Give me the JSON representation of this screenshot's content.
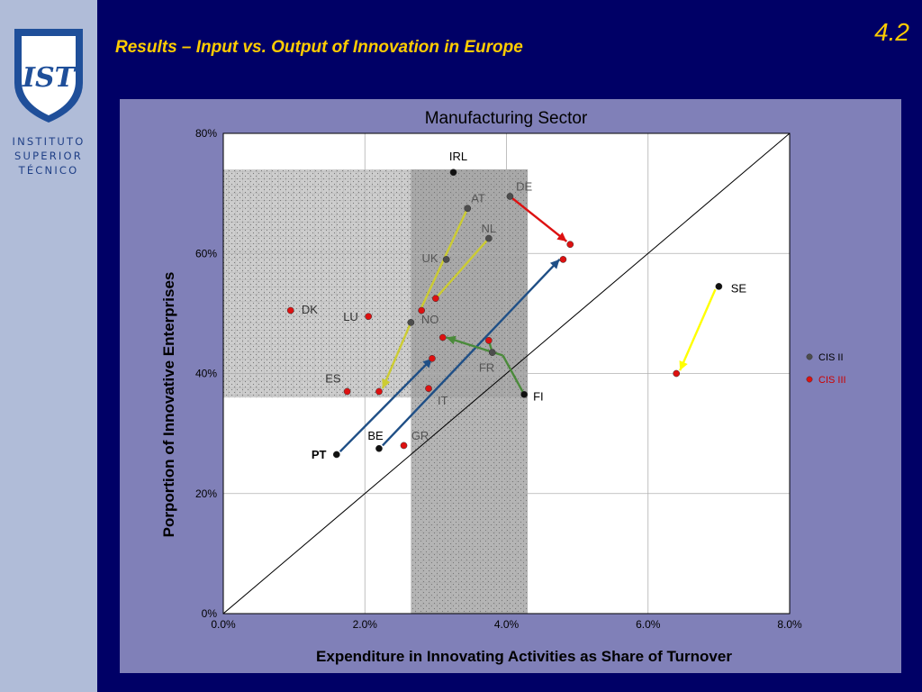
{
  "header": {
    "slide_number": "4.2",
    "title": "Results – Input vs. Output of Innovation in Europe"
  },
  "sidebar": {
    "logo_monogram": "IST",
    "institution_lines": [
      "INSTITUTO",
      "SUPERIOR",
      "TÉCNICO"
    ]
  },
  "colors": {
    "background": "#000066",
    "sidebar": "#b0bcd8",
    "panel": "#8080b8",
    "title": "#ffcc00",
    "cis2": "#4d4d4d",
    "cis3": "#dd1111",
    "arrow_de": "#dd1111",
    "arrow_pt_be": "#1f4f86",
    "arrow_se": "#ffff00",
    "arrow_lu_at_nl": "#cccc33",
    "arrow_fi": "#4a8a3a"
  },
  "chart_data": {
    "type": "scatter",
    "title": "Manufacturing Sector",
    "xlabel": "Expenditure in Innovating Activities as Share of Turnover",
    "ylabel": "Porportion of Innovative Enterprises",
    "xlim": [
      0,
      8
    ],
    "ylim": [
      0,
      80
    ],
    "x_unit": "%",
    "y_unit": "%",
    "x_ticks": [
      "0.0%",
      "2.0%",
      "4.0%",
      "6.0%",
      "8.0%"
    ],
    "y_ticks": [
      "0%",
      "20%",
      "40%",
      "60%",
      "80%"
    ],
    "grid": true,
    "diagonal_reference_line": true,
    "legend": {
      "placement": "right",
      "entries": [
        "CIS II",
        "CIS III"
      ]
    },
    "shaded_regions": [
      {
        "x": [
          0,
          4.3
        ],
        "y": [
          36,
          74
        ]
      },
      {
        "x": [
          2.65,
          4.3
        ],
        "y": [
          0,
          74
        ]
      }
    ],
    "series": [
      {
        "name": "CIS II",
        "points": [
          {
            "label": "IRL",
            "x": 3.25,
            "y": 73.5
          },
          {
            "label": "DE",
            "x": 4.05,
            "y": 69.5
          },
          {
            "label": "AT",
            "x": 3.45,
            "y": 67.5
          },
          {
            "label": "NL",
            "x": 3.75,
            "y": 62.5
          },
          {
            "label": "UK",
            "x": 3.15,
            "y": 59
          },
          {
            "label": "NO",
            "x": 2.65,
            "y": 48.5
          },
          {
            "label": "FR",
            "x": 3.8,
            "y": 43.5
          },
          {
            "label": "FI",
            "x": 4.25,
            "y": 36.5
          },
          {
            "label": "SE",
            "x": 7.0,
            "y": 54.5
          },
          {
            "label": "BE",
            "x": 2.2,
            "y": 27.5
          },
          {
            "label": "PT",
            "x": 1.6,
            "y": 26.5
          }
        ]
      },
      {
        "name": "CIS III",
        "points": [
          {
            "label": "DE",
            "x": 4.9,
            "y": 61.5
          },
          {
            "label": "BE",
            "x": 4.8,
            "y": 59
          },
          {
            "label": "PT",
            "x": 2.95,
            "y": 42.5
          },
          {
            "label": "SE",
            "x": 6.4,
            "y": 40
          },
          {
            "label": "DK",
            "x": 0.95,
            "y": 50.5
          },
          {
            "label": "LU",
            "x": 2.05,
            "y": 49.5
          },
          {
            "label": "ES",
            "x": 1.75,
            "y": 37
          },
          {
            "label": "GR",
            "x": 2.55,
            "y": 28
          },
          {
            "label": "IT",
            "x": 2.9,
            "y": 37.5
          },
          {
            "label": "AT",
            "x": 2.2,
            "y": 37
          },
          {
            "label": "NL",
            "x": 3.0,
            "y": 52.5
          },
          {
            "label": "UK",
            "x": 2.8,
            "y": 50.5
          },
          {
            "label": "FR",
            "x": 3.1,
            "y": 46
          },
          {
            "label": "FI",
            "x": 3.75,
            "y": 45.5
          }
        ]
      }
    ],
    "point_labels": [
      {
        "text": "IRL",
        "x": 3.32,
        "y": 75.5,
        "color": "#000000",
        "bold": false
      },
      {
        "text": "DE",
        "x": 4.25,
        "y": 70.5,
        "color": "#555555",
        "bold": false
      },
      {
        "text": "AT",
        "x": 3.6,
        "y": 68.5,
        "color": "#555555",
        "bold": false
      },
      {
        "text": "NL",
        "x": 3.75,
        "y": 63.5,
        "color": "#555555",
        "bold": false
      },
      {
        "text": "UK",
        "x": 2.92,
        "y": 58.5,
        "color": "#555555",
        "bold": false
      },
      {
        "text": "NO",
        "x": 2.92,
        "y": 48.3,
        "color": "#555555",
        "bold": false
      },
      {
        "text": "FR",
        "x": 3.72,
        "y": 40.3,
        "color": "#555555",
        "bold": false
      },
      {
        "text": "IT",
        "x": 3.1,
        "y": 34.8,
        "color": "#555555",
        "bold": false
      },
      {
        "text": "FI",
        "x": 4.45,
        "y": 35.5,
        "color": "#000000",
        "bold": false
      },
      {
        "text": "GR",
        "x": 2.78,
        "y": 29,
        "color": "#555555",
        "bold": false
      },
      {
        "text": "BE",
        "x": 2.15,
        "y": 29,
        "color": "#000000",
        "bold": false
      },
      {
        "text": "PT",
        "x": 1.35,
        "y": 25.8,
        "color": "#000000",
        "bold": true
      },
      {
        "text": "DK",
        "x": 1.22,
        "y": 50,
        "color": "#333333",
        "bold": false
      },
      {
        "text": "LU",
        "x": 1.8,
        "y": 48.8,
        "color": "#333333",
        "bold": false
      },
      {
        "text": "ES",
        "x": 1.55,
        "y": 38.5,
        "color": "#333333",
        "bold": false
      },
      {
        "text": "SE",
        "x": 7.28,
        "y": 53.5,
        "color": "#000000",
        "bold": false
      }
    ],
    "transitions": [
      {
        "from": [
          4.05,
          69.5
        ],
        "to": [
          4.85,
          62
        ],
        "color": "#dd1111",
        "arrowhead": true
      },
      {
        "from": [
          1.65,
          27
        ],
        "to": [
          2.95,
          42.5
        ],
        "color": "#1f4f86",
        "arrowhead": true
      },
      {
        "from": [
          2.25,
          28
        ],
        "to": [
          4.75,
          59
        ],
        "color": "#1f4f86",
        "arrowhead": true
      },
      {
        "from": [
          6.95,
          54
        ],
        "to": [
          6.45,
          40.5
        ],
        "color": "#ffff00",
        "arrowhead": true
      },
      {
        "from": [
          2.65,
          48.5
        ],
        "to": [
          2.25,
          37.5
        ],
        "color": "#cccc33",
        "arrowhead": true
      },
      {
        "from": [
          3.45,
          67.5
        ],
        "to": [
          2.8,
          51
        ],
        "color": "#cccc33",
        "arrowhead": false
      },
      {
        "from": [
          3.75,
          62.5
        ],
        "to": [
          3.0,
          52.5
        ],
        "color": "#cccc33",
        "arrowhead": false
      },
      {
        "from": [
          4.25,
          36.5
        ],
        "to": [
          3.95,
          43
        ],
        "color": "#4a8a3a",
        "arrowhead": false
      },
      {
        "from": [
          3.95,
          43
        ],
        "to": [
          3.15,
          46
        ],
        "color": "#4a8a3a",
        "arrowhead": true
      },
      {
        "from": [
          3.8,
          43.5
        ],
        "to": [
          3.75,
          45.5
        ],
        "color": "#4a8a3a",
        "arrowhead": false
      }
    ]
  }
}
